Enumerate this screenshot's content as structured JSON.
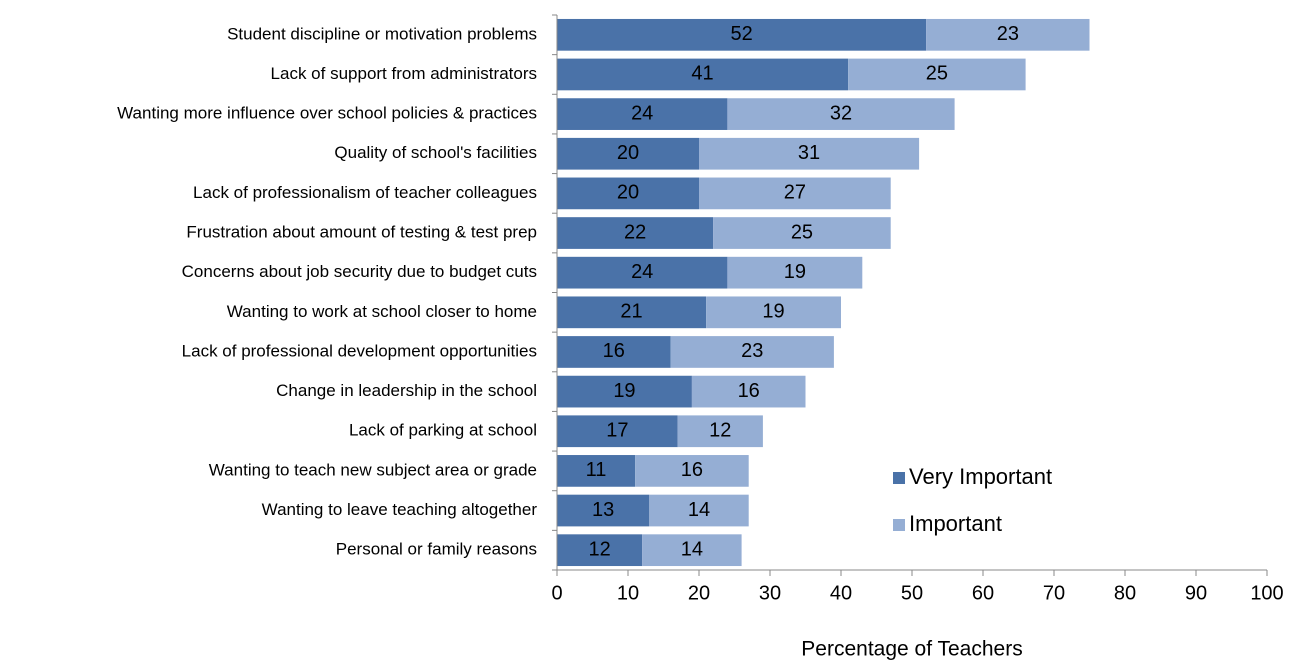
{
  "chart_data": {
    "type": "stacked_barh",
    "xlabel": "Percentage of Teachers",
    "categories": [
      "Student discipline or motivation problems",
      "Lack of support from administrators",
      "Wanting more influence over school policies & practices",
      "Quality of school's facilities",
      "Lack of professionalism of teacher colleagues",
      "Frustration about amount of testing & test prep",
      "Concerns about job security due to budget cuts",
      "Wanting to work at school closer to home",
      "Lack of professional development opportunities",
      "Change in leadership in the school",
      "Lack of parking at school",
      "Wanting to teach new subject area or grade",
      "Wanting to leave teaching altogether",
      "Personal or family reasons"
    ],
    "series": [
      {
        "name": "Very Important",
        "color": "#4a72a8",
        "values": [
          52,
          41,
          24,
          20,
          20,
          22,
          24,
          21,
          16,
          19,
          17,
          11,
          13,
          12
        ]
      },
      {
        "name": "Important",
        "color": "#95aed4",
        "values": [
          23,
          25,
          32,
          31,
          27,
          25,
          19,
          19,
          23,
          16,
          12,
          16,
          14,
          14
        ]
      }
    ],
    "xlim": [
      0,
      100
    ],
    "xticks": [
      0,
      10,
      20,
      30,
      40,
      50,
      60,
      70,
      80,
      90,
      100
    ],
    "legend": "lower right",
    "grid": false
  }
}
